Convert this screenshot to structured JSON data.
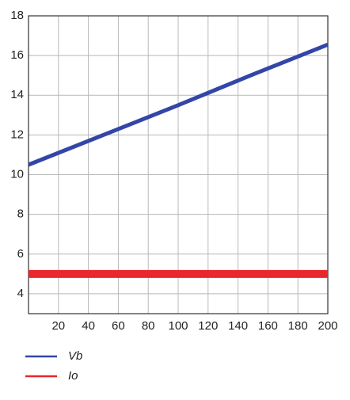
{
  "chart_data": {
    "type": "line",
    "x": [
      0,
      50,
      100,
      150,
      200
    ],
    "series": [
      {
        "name": "Vb",
        "color": "#3346a8",
        "values": [
          10.5,
          12.0,
          13.5,
          15.05,
          16.55
        ]
      },
      {
        "name": "Io",
        "color": "#e8282c",
        "values": [
          5.0,
          5.0,
          5.0,
          5.0,
          5.0
        ]
      }
    ],
    "xlim": [
      0,
      200
    ],
    "xticks": [
      20,
      40,
      60,
      80,
      100,
      120,
      140,
      160,
      180,
      200
    ],
    "ylim": [
      3,
      18
    ],
    "yticks": [
      4,
      6,
      8,
      10,
      12,
      14,
      16,
      18
    ],
    "grid": true
  }
}
